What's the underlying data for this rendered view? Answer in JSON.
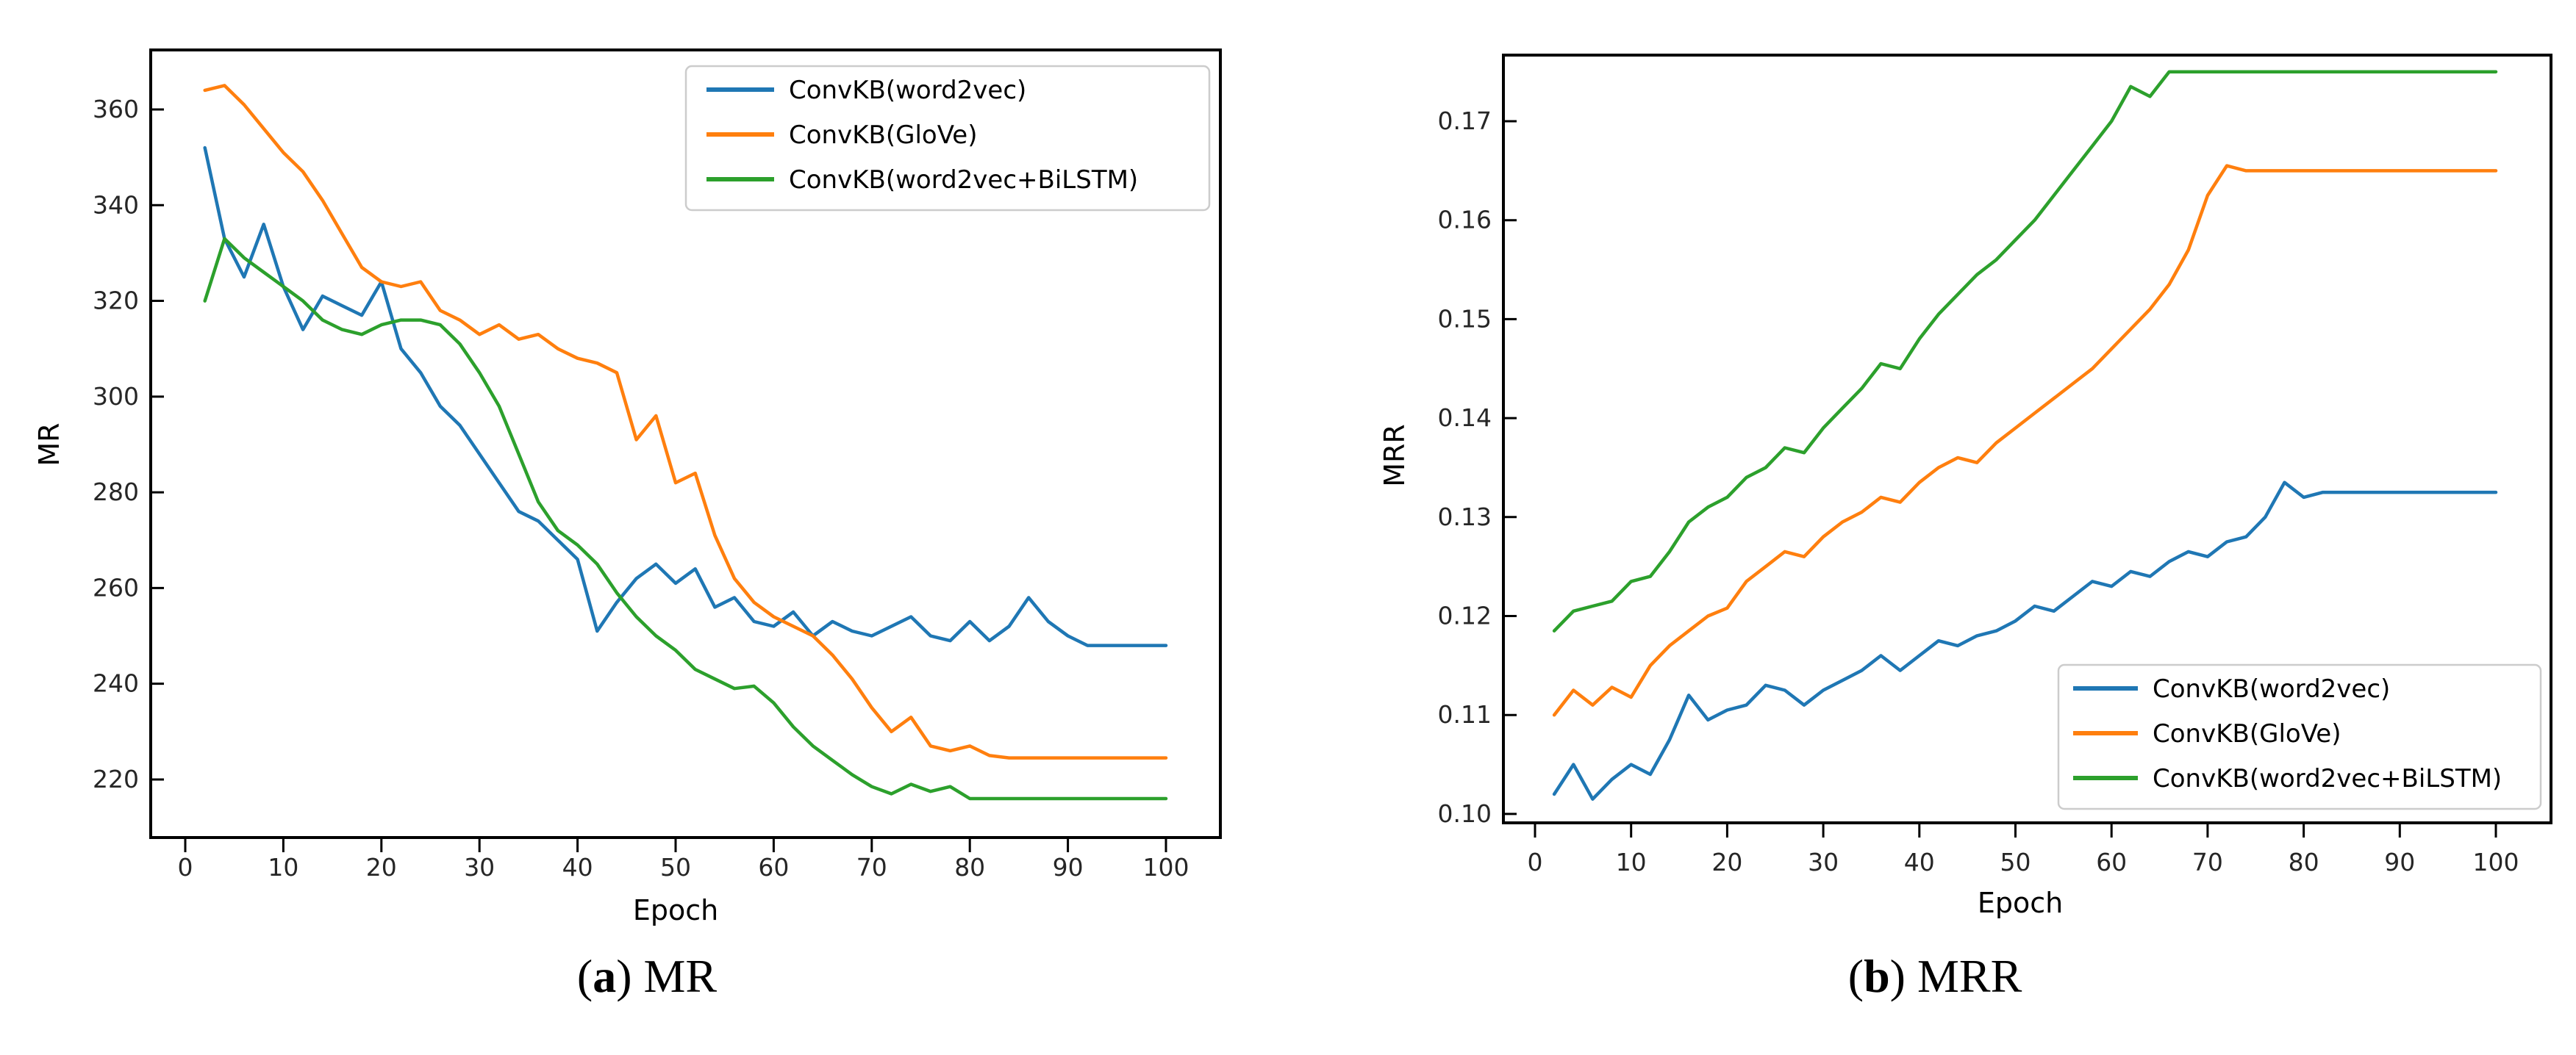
{
  "figure": {
    "background": "#ffffff",
    "spine_color": "#000000",
    "tick_label_color": "#262626",
    "legend_background": "#ffffff",
    "legend_border_color": "#cccccc"
  },
  "captions": [
    {
      "paren_open": "(",
      "letter": "a",
      "paren_close": ")",
      "title": " MR"
    },
    {
      "paren_open": "(",
      "letter": "b",
      "paren_close": ")",
      "title": " MRR"
    }
  ],
  "chart_data": [
    {
      "type": "line",
      "title": "",
      "xlabel": "Epoch",
      "ylabel": "MR",
      "legend_position": "upper right",
      "grid": false,
      "xlim": [
        -4,
        106
      ],
      "ylim": [
        208,
        371
      ],
      "xticks": [
        0,
        10,
        20,
        30,
        40,
        50,
        60,
        70,
        80,
        90,
        100
      ],
      "xtick_labels": [
        "0",
        "10",
        "20",
        "30",
        "40",
        "50",
        "60",
        "70",
        "80",
        "90",
        "100"
      ],
      "yticks": [
        220,
        240,
        260,
        280,
        300,
        320,
        340,
        360
      ],
      "ytick_labels": [
        "220",
        "240",
        "260",
        "280",
        "300",
        "320",
        "340",
        "360"
      ],
      "x": [
        2,
        4,
        6,
        8,
        10,
        12,
        14,
        16,
        18,
        20,
        22,
        24,
        26,
        28,
        30,
        32,
        34,
        36,
        38,
        40,
        42,
        44,
        46,
        48,
        50,
        52,
        54,
        56,
        58,
        60,
        62,
        64,
        66,
        68,
        70,
        72,
        74,
        76,
        78,
        80,
        82,
        84,
        86,
        88,
        90,
        92,
        94,
        96,
        98,
        100
      ],
      "series": [
        {
          "name": "ConvKB(word2vec)",
          "color": "#1f77b4",
          "values": [
            352,
            333,
            325,
            336,
            323,
            314,
            321,
            319,
            317,
            324,
            310,
            305,
            298,
            294,
            288,
            282,
            276,
            274,
            270,
            266,
            251,
            257,
            262,
            265,
            261,
            264,
            256,
            258,
            253,
            252,
            255,
            250,
            253,
            251,
            250,
            252,
            254,
            250,
            249,
            253,
            249,
            252,
            258,
            253,
            250,
            248,
            248,
            248,
            248,
            248
          ]
        },
        {
          "name": "ConvKB(GloVe)",
          "color": "#ff7f0e",
          "values": [
            364,
            365,
            361,
            356,
            351,
            347,
            341,
            334,
            327,
            324,
            323,
            324,
            318,
            316,
            313,
            315,
            312,
            313,
            310,
            308,
            307,
            305,
            291,
            296,
            282,
            284,
            271,
            262,
            257,
            254,
            252,
            250,
            246,
            241,
            235,
            230,
            233,
            227,
            226,
            227,
            225,
            224.5,
            224.5,
            224.5,
            224.5,
            224.5,
            224.5,
            224.5,
            224.5,
            224.5
          ]
        },
        {
          "name": "ConvKB(word2vec+BiLSTM)",
          "color": "#2ca02c",
          "values": [
            320,
            333,
            329,
            326,
            323,
            320,
            316,
            314,
            313,
            315,
            316,
            316,
            315,
            311,
            305,
            298,
            288,
            278,
            272,
            269,
            265,
            259,
            254,
            250,
            247,
            243,
            241,
            239,
            239.5,
            236,
            231,
            227,
            224,
            221,
            218.5,
            217,
            219,
            217.5,
            218.5,
            216,
            216,
            216,
            216,
            216,
            216,
            216,
            216,
            216,
            216,
            216
          ]
        }
      ]
    },
    {
      "type": "line",
      "title": "",
      "xlabel": "Epoch",
      "ylabel": "MRR",
      "legend_position": "lower right",
      "grid": false,
      "xlim": [
        -4,
        106
      ],
      "ylim": [
        0.0985,
        0.1785
      ],
      "xticks": [
        0,
        10,
        20,
        30,
        40,
        50,
        60,
        70,
        80,
        90,
        100
      ],
      "xtick_labels": [
        "0",
        "10",
        "20",
        "30",
        "40",
        "50",
        "60",
        "70",
        "80",
        "90",
        "100"
      ],
      "yticks": [
        0.1,
        0.11,
        0.12,
        0.13,
        0.14,
        0.15,
        0.16,
        0.17
      ],
      "ytick_labels": [
        "0.10",
        "0.11",
        "0.12",
        "0.13",
        "0.14",
        "0.15",
        "0.16",
        "0.17"
      ],
      "x": [
        2,
        4,
        6,
        8,
        10,
        12,
        14,
        16,
        18,
        20,
        22,
        24,
        26,
        28,
        30,
        32,
        34,
        36,
        38,
        40,
        42,
        44,
        46,
        48,
        50,
        52,
        54,
        56,
        58,
        60,
        62,
        64,
        66,
        68,
        70,
        72,
        74,
        76,
        78,
        80,
        82,
        84,
        86,
        88,
        90,
        92,
        94,
        96,
        98,
        100
      ],
      "series": [
        {
          "name": "ConvKB(word2vec)",
          "color": "#1f77b4",
          "values": [
            0.102,
            0.105,
            0.1015,
            0.1035,
            0.105,
            0.104,
            0.1075,
            0.112,
            0.1095,
            0.1105,
            0.111,
            0.113,
            0.1125,
            0.111,
            0.1125,
            0.1135,
            0.1145,
            0.116,
            0.1145,
            0.116,
            0.1175,
            0.117,
            0.118,
            0.1185,
            0.1195,
            0.121,
            0.1205,
            0.122,
            0.1235,
            0.123,
            0.1245,
            0.124,
            0.1255,
            0.1265,
            0.126,
            0.1275,
            0.128,
            0.13,
            0.1335,
            0.132,
            0.1325,
            0.1325,
            0.1325,
            0.1325,
            0.1325,
            0.1325,
            0.1325,
            0.1325,
            0.1325,
            0.1325
          ]
        },
        {
          "name": "ConvKB(GloVe)",
          "color": "#ff7f0e",
          "values": [
            0.11,
            0.1125,
            0.111,
            0.1128,
            0.1118,
            0.115,
            0.117,
            0.1185,
            0.12,
            0.1208,
            0.1235,
            0.125,
            0.1265,
            0.126,
            0.128,
            0.1295,
            0.1305,
            0.132,
            0.1315,
            0.1335,
            0.135,
            0.136,
            0.1355,
            0.1375,
            0.139,
            0.1405,
            0.142,
            0.1435,
            0.145,
            0.147,
            0.149,
            0.151,
            0.1535,
            0.157,
            0.1625,
            0.1655,
            0.165,
            0.165,
            0.165,
            0.165,
            0.165,
            0.165,
            0.165,
            0.165,
            0.165,
            0.165,
            0.165,
            0.165,
            0.165,
            0.165
          ]
        },
        {
          "name": "ConvKB(word2vec+BiLSTM)",
          "color": "#2ca02c",
          "values": [
            0.1185,
            0.1205,
            0.121,
            0.1215,
            0.1235,
            0.124,
            0.1265,
            0.1295,
            0.131,
            0.132,
            0.134,
            0.135,
            0.137,
            0.1365,
            0.139,
            0.141,
            0.143,
            0.1455,
            0.145,
            0.148,
            0.1505,
            0.1525,
            0.1545,
            0.156,
            0.158,
            0.16,
            0.1625,
            0.165,
            0.1675,
            0.17,
            0.1735,
            0.1725,
            0.175,
            0.175,
            0.175,
            0.175,
            0.175,
            0.175,
            0.175,
            0.175,
            0.175,
            0.175,
            0.175,
            0.175,
            0.175,
            0.175,
            0.175,
            0.175,
            0.175,
            0.175
          ]
        }
      ]
    }
  ]
}
